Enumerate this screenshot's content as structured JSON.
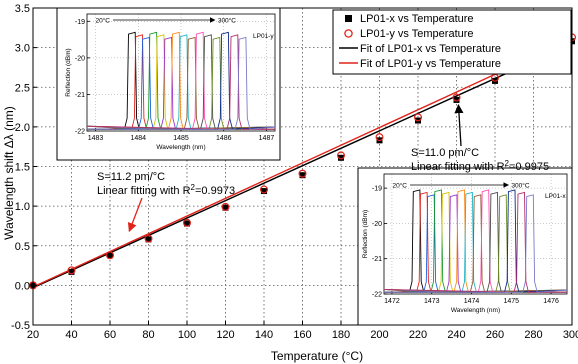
{
  "chart_data": {
    "type": "scatter",
    "xlabel": "Temperature (°C)",
    "ylabel": "Wavelength shift Δλ (nm)",
    "xlim": [
      20,
      300
    ],
    "ylim": [
      -0.5,
      3.5
    ],
    "xticks": [
      20,
      40,
      60,
      80,
      100,
      120,
      140,
      160,
      180,
      200,
      220,
      240,
      260,
      280,
      300
    ],
    "yticks": [
      -0.5,
      0.0,
      0.5,
      1.0,
      1.5,
      2.0,
      2.5,
      3.0,
      3.5
    ],
    "grid": true,
    "legend_position": "top-right",
    "series": [
      {
        "name": "LP01-x vs Temperature",
        "marker": "square-filled",
        "color": "#000000",
        "x": [
          20,
          40,
          60,
          80,
          100,
          120,
          140,
          160,
          180,
          200,
          220,
          240,
          260,
          280,
          300
        ],
        "y": [
          0.0,
          0.17,
          0.38,
          0.58,
          0.78,
          0.98,
          1.19,
          1.39,
          1.61,
          1.83,
          2.08,
          2.34,
          2.58,
          2.82,
          3.08
        ]
      },
      {
        "name": "LP01-y vs Temperature",
        "marker": "circle-open",
        "color": "#e2231a",
        "x": [
          20,
          40,
          60,
          80,
          100,
          120,
          140,
          160,
          180,
          200,
          220,
          240,
          260,
          280,
          300
        ],
        "y": [
          0.0,
          0.19,
          0.38,
          0.59,
          0.79,
          0.99,
          1.21,
          1.41,
          1.64,
          1.87,
          2.12,
          2.37,
          2.62,
          2.89,
          3.13
        ]
      },
      {
        "name": "Fit of LP01-x vs Temperature",
        "type": "line",
        "color": "#000000",
        "x": [
          20,
          300
        ],
        "y": [
          -0.03,
          3.05
        ]
      },
      {
        "name": "Fit of LP01-y vs Temperature",
        "type": "line",
        "color": "#e2231a",
        "x": [
          20,
          300
        ],
        "y": [
          -0.02,
          3.11
        ]
      }
    ],
    "annotations": [
      {
        "id": "y-fit",
        "line1": "S=11.2 pm/°C",
        "line2_prefix": "Linear fitting with R",
        "sup": "2",
        "line2_suffix": "=0.9973",
        "arrow_color": "#e2231a",
        "arrow_to": [
          70,
          0.62
        ]
      },
      {
        "id": "x-fit",
        "line1": "S=11.0 pm/°C",
        "line2_prefix": "Linear fitting with R",
        "sup": "2",
        "line2_suffix": "=0.9975",
        "arrow_color": "#000000",
        "arrow_to": [
          241,
          2.34
        ]
      }
    ]
  },
  "insets": [
    {
      "id": "lp01-y",
      "mode_label": "LP01-y",
      "range_start": "20°C",
      "range_end": "300°C",
      "xlabel": "Wavelength (nm)",
      "ylabel": "Reflection (dBm)",
      "xlim": [
        1482.8,
        1487.2
      ],
      "ylim": [
        -22,
        -18.8
      ],
      "xticks": [
        1483,
        1484,
        1485,
        1486,
        1487
      ],
      "yticks": [
        -19,
        -20,
        -21,
        -22
      ],
      "peak_centers": [
        1483.85,
        1484.02,
        1484.18,
        1484.35,
        1484.52,
        1484.7,
        1484.88,
        1485.06,
        1485.25,
        1485.44,
        1485.63,
        1485.83,
        1486.03,
        1486.25,
        1486.44
      ],
      "peak_level": -19.35,
      "floor_level": -21.95
    },
    {
      "id": "lp01-x",
      "mode_label": "LP01-x",
      "range_start": "20°C",
      "range_end": "300°C",
      "xlabel": "Wavelength (nm)",
      "ylabel": "Reflection (dBm)",
      "xlim": [
        1471.8,
        1476.4
      ],
      "ylim": [
        -22,
        -18.6
      ],
      "xticks": [
        1472,
        1473,
        1474,
        1475,
        1476
      ],
      "yticks": [
        -19,
        -20,
        -21,
        -22
      ],
      "peak_centers": [
        1472.62,
        1472.8,
        1472.98,
        1473.16,
        1473.35,
        1473.55,
        1473.74,
        1473.94,
        1474.15,
        1474.35,
        1474.57,
        1474.79,
        1475.01,
        1475.25,
        1475.47
      ],
      "peak_level": -19.1,
      "floor_level": -21.95
    }
  ],
  "colors": {
    "spectra": [
      "#000000",
      "#e2231a",
      "#1f5fe0",
      "#1a9a2a",
      "#d6c200",
      "#9b2fd0",
      "#ff8c1a",
      "#22b5c8",
      "#8b5a2b",
      "#ff4fb3",
      "#4a4a4a",
      "#6b8e23",
      "#0b2a8a",
      "#b52a6a",
      "#7a7acc"
    ]
  }
}
